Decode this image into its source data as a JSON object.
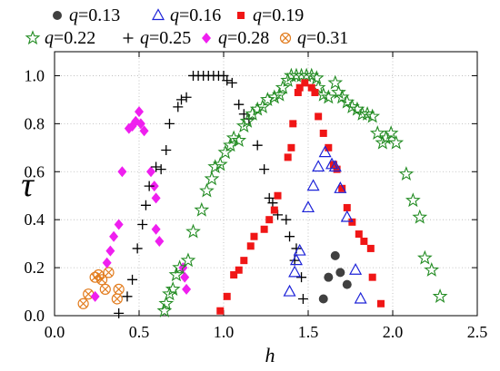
{
  "chart_data": {
    "type": "scatter",
    "xlabel": "h",
    "ylabel": "τ",
    "xlim": [
      0,
      2.5
    ],
    "ylim": [
      0,
      1.1
    ],
    "xticks": [
      "0.0",
      "0.5",
      "1.0",
      "1.5",
      "2.0",
      "2.5"
    ],
    "yticks": [
      "0.0",
      "0.2",
      "0.4",
      "0.6",
      "0.8",
      "1.0"
    ],
    "grid": true,
    "legend_position": "top",
    "series": [
      {
        "name": "q=0.13",
        "marker": "filled-circle",
        "color": "#404040",
        "points": [
          [
            1.59,
            0.07
          ],
          [
            1.62,
            0.16
          ],
          [
            1.66,
            0.25
          ],
          [
            1.69,
            0.18
          ],
          [
            1.73,
            0.13
          ]
        ]
      },
      {
        "name": "q=0.16",
        "marker": "open-triangle",
        "color": "#1c22d8",
        "points": [
          [
            1.39,
            0.1
          ],
          [
            1.42,
            0.18
          ],
          [
            1.43,
            0.23
          ],
          [
            1.45,
            0.27
          ],
          [
            1.5,
            0.45
          ],
          [
            1.53,
            0.54
          ],
          [
            1.56,
            0.62
          ],
          [
            1.6,
            0.68
          ],
          [
            1.64,
            0.63
          ],
          [
            1.66,
            0.62
          ],
          [
            1.69,
            0.53
          ],
          [
            1.73,
            0.41
          ],
          [
            1.78,
            0.19
          ],
          [
            1.81,
            0.07
          ]
        ]
      },
      {
        "name": "q=0.19",
        "marker": "filled-square",
        "color": "#f01616",
        "points": [
          [
            0.98,
            0.02
          ],
          [
            1.02,
            0.08
          ],
          [
            1.06,
            0.17
          ],
          [
            1.09,
            0.19
          ],
          [
            1.12,
            0.23
          ],
          [
            1.16,
            0.29
          ],
          [
            1.18,
            0.33
          ],
          [
            1.24,
            0.36
          ],
          [
            1.27,
            0.4
          ],
          [
            1.3,
            0.44
          ],
          [
            1.32,
            0.5
          ],
          [
            1.38,
            0.66
          ],
          [
            1.4,
            0.7
          ],
          [
            1.41,
            0.8
          ],
          [
            1.44,
            0.93
          ],
          [
            1.45,
            0.95
          ],
          [
            1.48,
            0.97
          ],
          [
            1.52,
            0.95
          ],
          [
            1.54,
            0.93
          ],
          [
            1.56,
            0.83
          ],
          [
            1.59,
            0.76
          ],
          [
            1.62,
            0.7
          ],
          [
            1.65,
            0.63
          ],
          [
            1.67,
            0.61
          ],
          [
            1.7,
            0.53
          ],
          [
            1.73,
            0.45
          ],
          [
            1.76,
            0.39
          ],
          [
            1.8,
            0.34
          ],
          [
            1.83,
            0.31
          ],
          [
            1.87,
            0.28
          ],
          [
            1.88,
            0.16
          ],
          [
            1.93,
            0.05
          ]
        ]
      },
      {
        "name": "q=0.22",
        "marker": "open-star",
        "color": "#238c23",
        "points": [
          [
            0.65,
            0.02
          ],
          [
            0.66,
            0.05
          ],
          [
            0.68,
            0.09
          ],
          [
            0.7,
            0.11
          ],
          [
            0.72,
            0.17
          ],
          [
            0.74,
            0.2
          ],
          [
            0.79,
            0.23
          ],
          [
            0.82,
            0.35
          ],
          [
            0.87,
            0.44
          ],
          [
            0.9,
            0.52
          ],
          [
            0.93,
            0.57
          ],
          [
            0.95,
            0.62
          ],
          [
            0.98,
            0.63
          ],
          [
            1.01,
            0.68
          ],
          [
            1.04,
            0.71
          ],
          [
            1.06,
            0.74
          ],
          [
            1.09,
            0.73
          ],
          [
            1.12,
            0.79
          ],
          [
            1.14,
            0.81
          ],
          [
            1.17,
            0.84
          ],
          [
            1.2,
            0.86
          ],
          [
            1.23,
            0.87
          ],
          [
            1.26,
            0.9
          ],
          [
            1.3,
            0.91
          ],
          [
            1.33,
            0.92
          ],
          [
            1.35,
            0.95
          ],
          [
            1.38,
            0.98
          ],
          [
            1.4,
            1.0
          ],
          [
            1.43,
            1.0
          ],
          [
            1.46,
            1.0
          ],
          [
            1.49,
            1.0
          ],
          [
            1.52,
            1.0
          ],
          [
            1.55,
            0.99
          ],
          [
            1.56,
            0.95
          ],
          [
            1.59,
            0.92
          ],
          [
            1.62,
            0.91
          ],
          [
            1.66,
            0.97
          ],
          [
            1.68,
            0.93
          ],
          [
            1.7,
            0.91
          ],
          [
            1.73,
            0.89
          ],
          [
            1.76,
            0.87
          ],
          [
            1.79,
            0.86
          ],
          [
            1.82,
            0.84
          ],
          [
            1.85,
            0.84
          ],
          [
            1.88,
            0.83
          ],
          [
            1.91,
            0.76
          ],
          [
            1.94,
            0.72
          ],
          [
            1.96,
            0.74
          ],
          [
            1.99,
            0.76
          ],
          [
            2.02,
            0.72
          ],
          [
            2.08,
            0.59
          ],
          [
            2.12,
            0.48
          ],
          [
            2.16,
            0.41
          ],
          [
            2.19,
            0.24
          ],
          [
            2.23,
            0.19
          ],
          [
            2.28,
            0.08
          ]
        ]
      },
      {
        "name": "q=0.25",
        "marker": "plus",
        "color": "#000000",
        "points": [
          [
            0.38,
            0.01
          ],
          [
            0.43,
            0.08
          ],
          [
            0.46,
            0.15
          ],
          [
            0.49,
            0.28
          ],
          [
            0.52,
            0.38
          ],
          [
            0.54,
            0.46
          ],
          [
            0.56,
            0.54
          ],
          [
            0.6,
            0.62
          ],
          [
            0.63,
            0.61
          ],
          [
            0.66,
            0.69
          ],
          [
            0.68,
            0.8
          ],
          [
            0.73,
            0.87
          ],
          [
            0.75,
            0.9
          ],
          [
            0.78,
            0.91
          ],
          [
            0.82,
            1.0
          ],
          [
            0.85,
            1.0
          ],
          [
            0.88,
            1.0
          ],
          [
            0.91,
            1.0
          ],
          [
            0.94,
            1.0
          ],
          [
            0.97,
            1.0
          ],
          [
            1.0,
            1.0
          ],
          [
            1.02,
            0.98
          ],
          [
            1.05,
            0.97
          ],
          [
            1.09,
            0.88
          ],
          [
            1.12,
            0.84
          ],
          [
            1.15,
            0.82
          ],
          [
            1.2,
            0.71
          ],
          [
            1.24,
            0.61
          ],
          [
            1.27,
            0.49
          ],
          [
            1.29,
            0.47
          ],
          [
            1.32,
            0.42
          ],
          [
            1.37,
            0.4
          ],
          [
            1.39,
            0.33
          ],
          [
            1.43,
            0.28
          ],
          [
            1.42,
            0.23
          ],
          [
            1.46,
            0.16
          ],
          [
            1.47,
            0.07
          ]
        ]
      },
      {
        "name": "q=0.28",
        "marker": "filled-diamond",
        "color": "#ef1fef",
        "points": [
          [
            0.24,
            0.08
          ],
          [
            0.31,
            0.22
          ],
          [
            0.33,
            0.27
          ],
          [
            0.35,
            0.33
          ],
          [
            0.38,
            0.38
          ],
          [
            0.4,
            0.6
          ],
          [
            0.44,
            0.78
          ],
          [
            0.46,
            0.79
          ],
          [
            0.48,
            0.81
          ],
          [
            0.5,
            0.85
          ],
          [
            0.51,
            0.8
          ],
          [
            0.53,
            0.77
          ],
          [
            0.57,
            0.6
          ],
          [
            0.59,
            0.54
          ],
          [
            0.6,
            0.49
          ],
          [
            0.6,
            0.36
          ],
          [
            0.62,
            0.31
          ],
          [
            0.76,
            0.2
          ],
          [
            0.77,
            0.16
          ],
          [
            0.78,
            0.11
          ]
        ]
      },
      {
        "name": "q=0.31",
        "marker": "circled-x",
        "color": "#e27c1e",
        "points": [
          [
            0.17,
            0.05
          ],
          [
            0.2,
            0.09
          ],
          [
            0.24,
            0.16
          ],
          [
            0.26,
            0.17
          ],
          [
            0.28,
            0.15
          ],
          [
            0.3,
            0.11
          ],
          [
            0.32,
            0.18
          ],
          [
            0.37,
            0.07
          ],
          [
            0.38,
            0.11
          ]
        ]
      }
    ]
  }
}
